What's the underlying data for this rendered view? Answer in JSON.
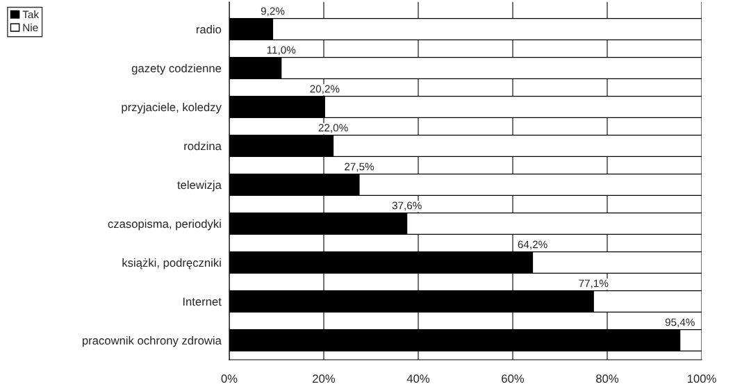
{
  "chart_data": {
    "type": "bar",
    "orientation": "horizontal",
    "stacked": true,
    "categories": [
      "radio",
      "gazety codzienne",
      "przyjaciele, koledzy",
      "rodzina",
      "telewizja",
      "czasopisma, periodyki",
      "książki, podręczniki",
      "Internet",
      "pracownik ochrony zdrowia"
    ],
    "series": [
      {
        "name": "Tak",
        "color": "#000000",
        "values": [
          9.2,
          11.0,
          20.2,
          22.0,
          27.5,
          37.6,
          64.2,
          77.1,
          95.4
        ],
        "value_labels": [
          "9,2%",
          "11,0%",
          "20,2%",
          "22,0%",
          "27,5%",
          "37,6%",
          "64,2%",
          "77,1%",
          "95,4%"
        ]
      },
      {
        "name": "Nie",
        "color": "#ffffff",
        "values": [
          90.8,
          89.0,
          79.8,
          78.0,
          72.5,
          62.4,
          35.8,
          22.9,
          4.6
        ]
      }
    ],
    "xlim": [
      0,
      100
    ],
    "xticks": [
      {
        "value": 0,
        "label": "0%"
      },
      {
        "value": 20,
        "label": "20%"
      },
      {
        "value": 40,
        "label": "40%"
      },
      {
        "value": 60,
        "label": "60%"
      },
      {
        "value": 80,
        "label": "80%"
      },
      {
        "value": 100,
        "label": "100%"
      }
    ],
    "grid": "x",
    "legend": "top left"
  }
}
